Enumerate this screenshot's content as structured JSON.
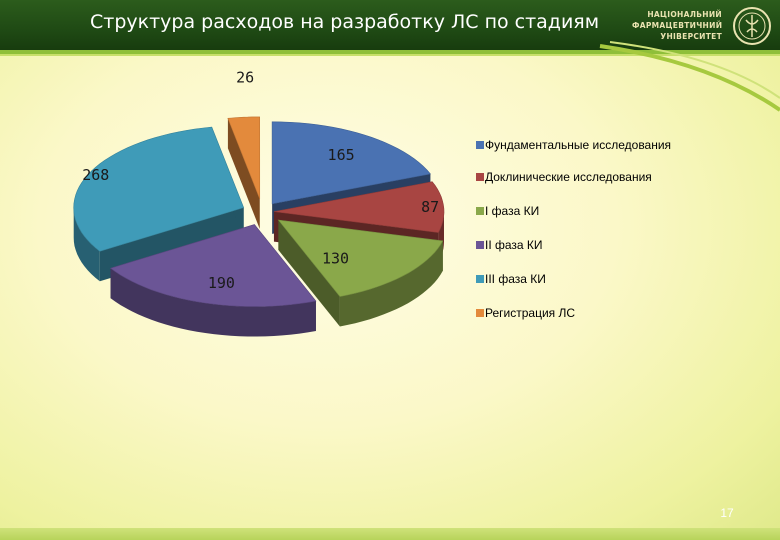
{
  "header": {
    "title": "Структура расходов на разработку ЛС по стадиям",
    "logo_lines": [
      "НАЦІОНАЛЬНИЙ",
      "ФАРМАЦЕВТИЧНИЙ",
      "УНІВЕРСИТЕТ"
    ]
  },
  "page_number": "17",
  "colors": {
    "header_bg": "#1f4a14",
    "accent_green": "#8fbf3a"
  },
  "chart_data": {
    "type": "pie",
    "style": "3d-exploded",
    "title": "",
    "categories": [
      "Фундаментальные исследования",
      "Доклинические исследования",
      "I фаза КИ",
      "II фаза КИ",
      "III фаза КИ",
      "Регистрация ЛС"
    ],
    "values": [
      165,
      87,
      130,
      190,
      268,
      26
    ],
    "value_labels": [
      "165",
      "87",
      "130",
      "190",
      "268",
      "26"
    ],
    "colors": [
      "#4a72b2",
      "#a84542",
      "#8aa84a",
      "#6b5596",
      "#3f9bb8",
      "#e38a3c"
    ],
    "legend_position": "right"
  }
}
